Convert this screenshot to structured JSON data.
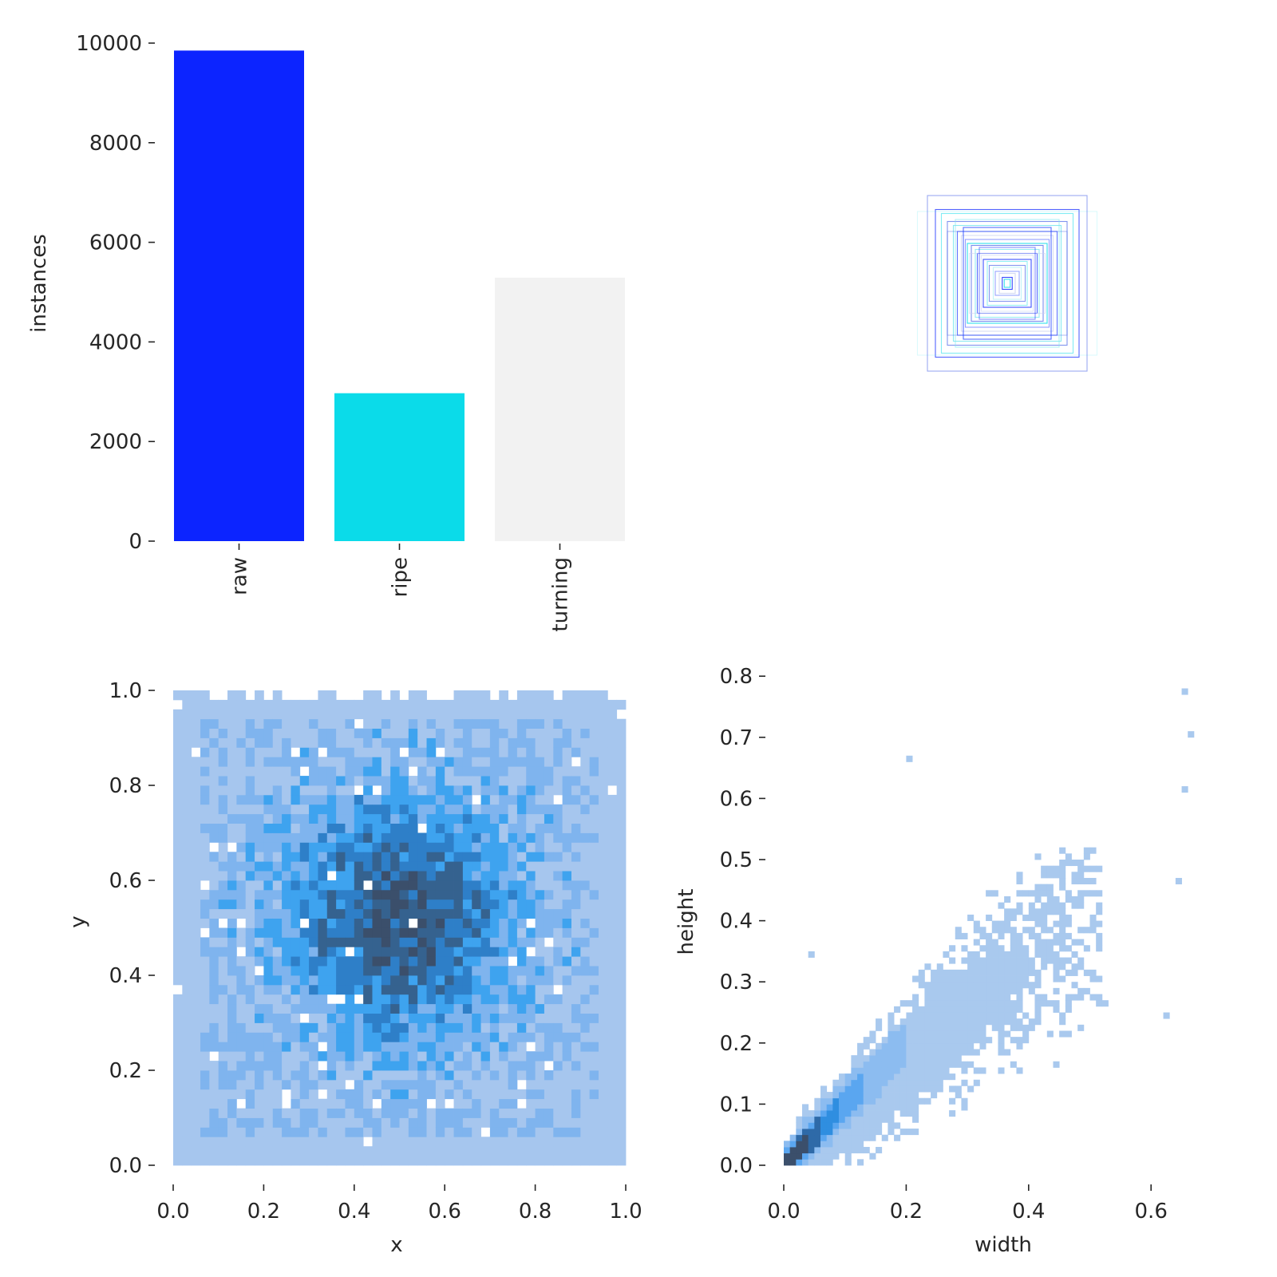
{
  "chart_data": [
    {
      "type": "bar",
      "categories": [
        "raw",
        "ripe",
        "turning"
      ],
      "values": [
        9850,
        2970,
        5290
      ],
      "colors": [
        "#0c24ff",
        "#0bdbe9",
        "#f2f2f2"
      ],
      "ylabel": "instances",
      "xlabel": "",
      "ylim": [
        0,
        10000
      ],
      "yticks": [
        "0",
        "2000",
        "4000",
        "6000",
        "8000",
        "10000"
      ],
      "grid": false
    },
    {
      "type": "box-overlay",
      "description_colors": [
        "#0c24ff",
        "#0bdbe9"
      ],
      "boxes_wh": [
        [
          0.72,
          0.74
        ],
        [
          0.66,
          0.7
        ],
        [
          0.6,
          0.62
        ],
        [
          0.54,
          0.58
        ],
        [
          0.5,
          0.52
        ],
        [
          0.46,
          0.48
        ],
        [
          0.42,
          0.44
        ],
        [
          0.4,
          0.4
        ],
        [
          0.36,
          0.38
        ],
        [
          0.32,
          0.34
        ],
        [
          0.3,
          0.3
        ],
        [
          0.26,
          0.28
        ],
        [
          0.24,
          0.24
        ],
        [
          0.2,
          0.22
        ],
        [
          0.18,
          0.18
        ],
        [
          0.14,
          0.16
        ],
        [
          0.12,
          0.12
        ],
        [
          0.08,
          0.1
        ],
        [
          0.05,
          0.06
        ],
        [
          0.03,
          0.04
        ],
        [
          0.6,
          0.52
        ],
        [
          0.52,
          0.64
        ],
        [
          0.44,
          0.56
        ],
        [
          0.38,
          0.3
        ],
        [
          0.28,
          0.36
        ],
        [
          0.9,
          0.72
        ],
        [
          0.8,
          0.88
        ]
      ]
    },
    {
      "type": "heatmap",
      "xlabel": "x",
      "ylabel": "y",
      "xlim": [
        0,
        1
      ],
      "ylim": [
        0,
        1
      ],
      "xticks": [
        "0.0",
        "0.2",
        "0.4",
        "0.6",
        "0.8",
        "1.0"
      ],
      "yticks": [
        "0.0",
        "0.2",
        "0.4",
        "0.6",
        "0.8",
        "1.0"
      ],
      "bins": 50,
      "center": [
        0.5,
        0.52
      ],
      "palette": [
        "#a6c6ee",
        "#7fb4ee",
        "#3ea3ef",
        "#2e7fc8",
        "#35628f",
        "#3b4f6b"
      ]
    },
    {
      "type": "heatmap",
      "xlabel": "width",
      "ylabel": "height",
      "xlim": [
        0,
        0.75
      ],
      "ylim": [
        0,
        0.8
      ],
      "xticks": [
        "0.0",
        "0.2",
        "0.4",
        "0.6"
      ],
      "yticks": [
        "0.0",
        "0.1",
        "0.2",
        "0.3",
        "0.4",
        "0.5",
        "0.6",
        "0.7",
        "0.8"
      ],
      "bin_size": 0.01,
      "palette": [
        "#a9c9ee",
        "#8cbcf0",
        "#5aa6f0",
        "#2f8ee0",
        "#2e6aa8",
        "#3b4f6b"
      ]
    }
  ]
}
